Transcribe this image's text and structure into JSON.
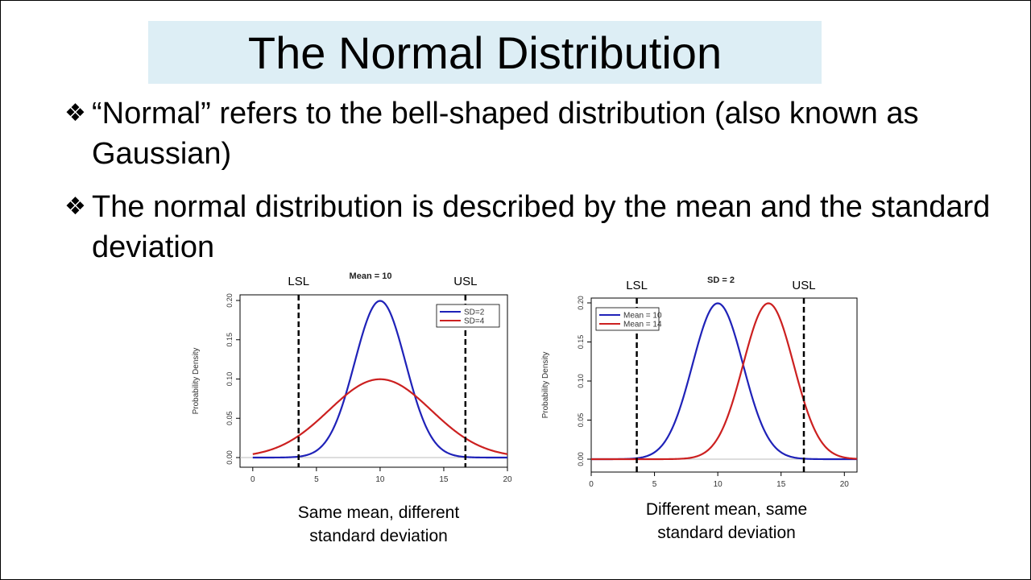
{
  "slide": {
    "title": "The Normal Distribution",
    "bullet_glyph": "❖",
    "bullets": [
      "“Normal” refers to the bell-shaped distribution (also known as Gaussian)",
      "The normal distribution is described by the mean and the standard deviation"
    ],
    "captions": [
      [
        "Same mean, different",
        "standard deviation"
      ],
      [
        "Different mean, same",
        "standard deviation"
      ]
    ]
  },
  "chart_data": [
    {
      "type": "line",
      "title": "Mean = 10",
      "ylabel": "Probability Density",
      "xlim": [
        -1,
        20
      ],
      "ylim": [
        0,
        0.2
      ],
      "x_ticks": [
        "0",
        "5",
        "10",
        "15",
        "20"
      ],
      "y_ticks": [
        "0.00",
        "0.05",
        "0.10",
        "0.15",
        "0.20"
      ],
      "x_tick_values": [
        0,
        5,
        10,
        15,
        20
      ],
      "y_tick_values": [
        0,
        0.05,
        0.1,
        0.15,
        0.2
      ],
      "line_range": [
        0,
        20
      ],
      "series": [
        {
          "name": "SD=2",
          "mean": 10,
          "sd": 2,
          "color": "#1f22b8"
        },
        {
          "name": "SD=4",
          "mean": 10,
          "sd": 4,
          "color": "#cc2020"
        }
      ],
      "vlines": [
        {
          "label": "LSL",
          "x": 3.6
        },
        {
          "label": "USL",
          "x": 16.7
        }
      ],
      "legend_position": "top-right"
    },
    {
      "type": "line",
      "title": "SD = 2",
      "ylabel": "Probability Density",
      "xlim": [
        0,
        21
      ],
      "ylim": [
        0,
        0.2
      ],
      "x_ticks": [
        "0",
        "5",
        "10",
        "15",
        "20"
      ],
      "y_ticks": [
        "0.00",
        "0.05",
        "0.10",
        "0.15",
        "0.20"
      ],
      "x_tick_values": [
        0,
        5,
        10,
        15,
        20
      ],
      "y_tick_values": [
        0,
        0.05,
        0.1,
        0.15,
        0.2
      ],
      "line_range": [
        0,
        21
      ],
      "series": [
        {
          "name": "Mean = 10",
          "mean": 10,
          "sd": 2,
          "color": "#1f22b8"
        },
        {
          "name": "Mean = 14",
          "mean": 14,
          "sd": 2,
          "color": "#cc2020"
        }
      ],
      "vlines": [
        {
          "label": "LSL",
          "x": 3.6
        },
        {
          "label": "USL",
          "x": 16.8
        }
      ],
      "legend_position": "top-left"
    }
  ]
}
